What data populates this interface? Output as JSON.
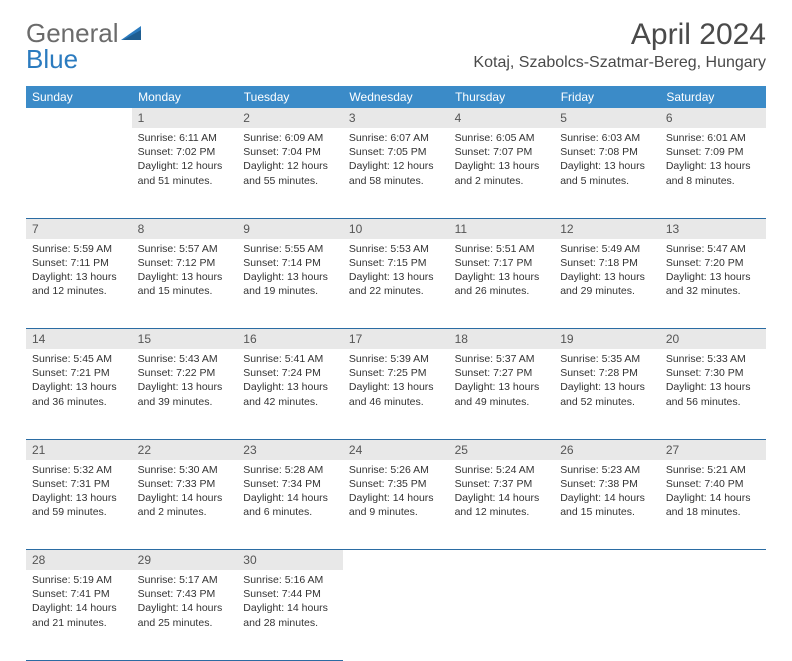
{
  "logo": {
    "text1": "General",
    "text2": "Blue"
  },
  "title": "April 2024",
  "location": "Kotaj, Szabolcs-Szatmar-Bereg, Hungary",
  "colors": {
    "header_bg": "#3b8bc8",
    "header_text": "#ffffff",
    "daynum_bg": "#e8e8e8",
    "border": "#2b6ca3",
    "logo_gray": "#6b6b6b",
    "logo_blue": "#2b7bbf",
    "text": "#333333"
  },
  "weekdays": [
    "Sunday",
    "Monday",
    "Tuesday",
    "Wednesday",
    "Thursday",
    "Friday",
    "Saturday"
  ],
  "weeks": [
    [
      null,
      {
        "n": "1",
        "sr": "6:11 AM",
        "ss": "7:02 PM",
        "dl": "12 hours and 51 minutes."
      },
      {
        "n": "2",
        "sr": "6:09 AM",
        "ss": "7:04 PM",
        "dl": "12 hours and 55 minutes."
      },
      {
        "n": "3",
        "sr": "6:07 AM",
        "ss": "7:05 PM",
        "dl": "12 hours and 58 minutes."
      },
      {
        "n": "4",
        "sr": "6:05 AM",
        "ss": "7:07 PM",
        "dl": "13 hours and 2 minutes."
      },
      {
        "n": "5",
        "sr": "6:03 AM",
        "ss": "7:08 PM",
        "dl": "13 hours and 5 minutes."
      },
      {
        "n": "6",
        "sr": "6:01 AM",
        "ss": "7:09 PM",
        "dl": "13 hours and 8 minutes."
      }
    ],
    [
      {
        "n": "7",
        "sr": "5:59 AM",
        "ss": "7:11 PM",
        "dl": "13 hours and 12 minutes."
      },
      {
        "n": "8",
        "sr": "5:57 AM",
        "ss": "7:12 PM",
        "dl": "13 hours and 15 minutes."
      },
      {
        "n": "9",
        "sr": "5:55 AM",
        "ss": "7:14 PM",
        "dl": "13 hours and 19 minutes."
      },
      {
        "n": "10",
        "sr": "5:53 AM",
        "ss": "7:15 PM",
        "dl": "13 hours and 22 minutes."
      },
      {
        "n": "11",
        "sr": "5:51 AM",
        "ss": "7:17 PM",
        "dl": "13 hours and 26 minutes."
      },
      {
        "n": "12",
        "sr": "5:49 AM",
        "ss": "7:18 PM",
        "dl": "13 hours and 29 minutes."
      },
      {
        "n": "13",
        "sr": "5:47 AM",
        "ss": "7:20 PM",
        "dl": "13 hours and 32 minutes."
      }
    ],
    [
      {
        "n": "14",
        "sr": "5:45 AM",
        "ss": "7:21 PM",
        "dl": "13 hours and 36 minutes."
      },
      {
        "n": "15",
        "sr": "5:43 AM",
        "ss": "7:22 PM",
        "dl": "13 hours and 39 minutes."
      },
      {
        "n": "16",
        "sr": "5:41 AM",
        "ss": "7:24 PM",
        "dl": "13 hours and 42 minutes."
      },
      {
        "n": "17",
        "sr": "5:39 AM",
        "ss": "7:25 PM",
        "dl": "13 hours and 46 minutes."
      },
      {
        "n": "18",
        "sr": "5:37 AM",
        "ss": "7:27 PM",
        "dl": "13 hours and 49 minutes."
      },
      {
        "n": "19",
        "sr": "5:35 AM",
        "ss": "7:28 PM",
        "dl": "13 hours and 52 minutes."
      },
      {
        "n": "20",
        "sr": "5:33 AM",
        "ss": "7:30 PM",
        "dl": "13 hours and 56 minutes."
      }
    ],
    [
      {
        "n": "21",
        "sr": "5:32 AM",
        "ss": "7:31 PM",
        "dl": "13 hours and 59 minutes."
      },
      {
        "n": "22",
        "sr": "5:30 AM",
        "ss": "7:33 PM",
        "dl": "14 hours and 2 minutes."
      },
      {
        "n": "23",
        "sr": "5:28 AM",
        "ss": "7:34 PM",
        "dl": "14 hours and 6 minutes."
      },
      {
        "n": "24",
        "sr": "5:26 AM",
        "ss": "7:35 PM",
        "dl": "14 hours and 9 minutes."
      },
      {
        "n": "25",
        "sr": "5:24 AM",
        "ss": "7:37 PM",
        "dl": "14 hours and 12 minutes."
      },
      {
        "n": "26",
        "sr": "5:23 AM",
        "ss": "7:38 PM",
        "dl": "14 hours and 15 minutes."
      },
      {
        "n": "27",
        "sr": "5:21 AM",
        "ss": "7:40 PM",
        "dl": "14 hours and 18 minutes."
      }
    ],
    [
      {
        "n": "28",
        "sr": "5:19 AM",
        "ss": "7:41 PM",
        "dl": "14 hours and 21 minutes."
      },
      {
        "n": "29",
        "sr": "5:17 AM",
        "ss": "7:43 PM",
        "dl": "14 hours and 25 minutes."
      },
      {
        "n": "30",
        "sr": "5:16 AM",
        "ss": "7:44 PM",
        "dl": "14 hours and 28 minutes."
      },
      null,
      null,
      null,
      null
    ]
  ],
  "labels": {
    "sunrise": "Sunrise: ",
    "sunset": "Sunset: ",
    "daylight": "Daylight: "
  }
}
